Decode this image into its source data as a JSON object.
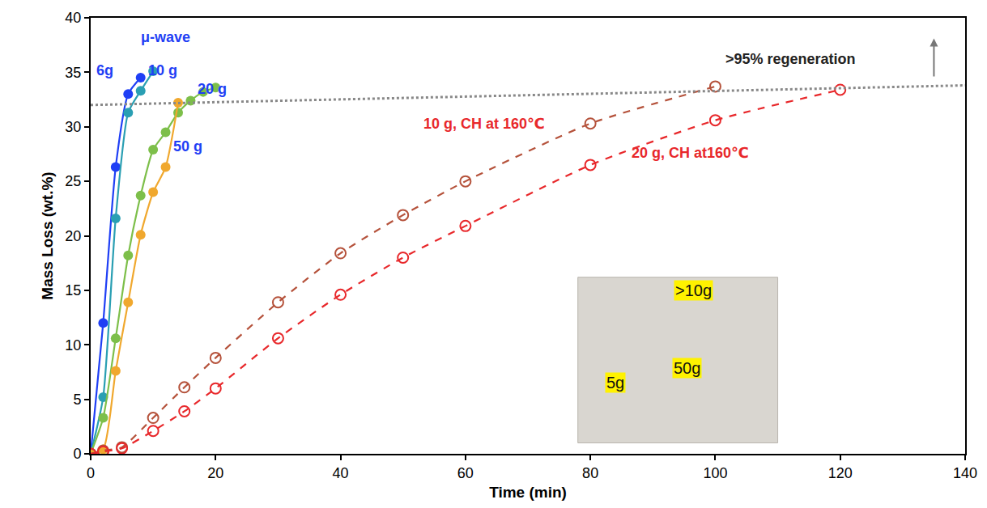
{
  "chart_data": {
    "type": "line",
    "x_label": "Time (min)",
    "y_label": "Mass Loss (wt.%)",
    "xlim": [
      0,
      140
    ],
    "xticks": [
      0,
      20,
      40,
      60,
      80,
      100,
      120,
      140
    ],
    "ylim": [
      0,
      40
    ],
    "yticks": [
      0,
      5,
      10,
      15,
      20,
      25,
      30,
      35,
      40
    ],
    "grid": false,
    "series": [
      {
        "name": "6g",
        "color": "#1f3ff5",
        "marker": "filled",
        "line_style": "solid",
        "x": [
          0,
          2,
          4,
          6,
          8
        ],
        "values": [
          0,
          12,
          26.3,
          33,
          34.5
        ]
      },
      {
        "name": "10 g",
        "color": "#2a9fb3",
        "marker": "filled",
        "line_style": "solid",
        "x": [
          0,
          2,
          4,
          6,
          8,
          10
        ],
        "values": [
          0,
          5.2,
          21.6,
          31.3,
          33.3,
          35.1
        ]
      },
      {
        "name": "20 g",
        "color": "#7dbf4a",
        "marker": "filled",
        "line_style": "solid",
        "x": [
          0,
          2,
          4,
          6,
          8,
          10,
          12,
          14,
          16,
          18,
          20
        ],
        "values": [
          0,
          3.3,
          10.6,
          18.2,
          23.7,
          27.9,
          29.5,
          31.3,
          32.4,
          33.2,
          33.6
        ]
      },
      {
        "name": "50 g",
        "color": "#f0a82e",
        "marker": "filled",
        "line_style": "solid",
        "x": [
          0,
          2,
          4,
          6,
          8,
          10,
          12,
          14
        ],
        "values": [
          0,
          0.4,
          7.6,
          13.9,
          20.1,
          24,
          26.3,
          32.2
        ]
      },
      {
        "name": "10 g, CH at 160℃",
        "color": "#b5523b",
        "marker": "open",
        "line_style": "dash",
        "x": [
          0,
          2,
          5,
          10,
          15,
          20,
          30,
          40,
          50,
          60,
          80,
          100
        ],
        "values": [
          0,
          0.3,
          0.6,
          3.3,
          6.1,
          8.8,
          13.9,
          18.4,
          21.9,
          25.0,
          30.3,
          33.7
        ]
      },
      {
        "name": "20 g, CH at160℃",
        "color": "#e8282b",
        "marker": "open",
        "line_style": "dash",
        "x": [
          0,
          2,
          5,
          10,
          15,
          20,
          30,
          40,
          50,
          60,
          80,
          100,
          120
        ],
        "values": [
          0,
          0.2,
          0.5,
          2.1,
          3.9,
          6,
          10.6,
          14.6,
          18,
          20.9,
          26.5,
          30.6,
          33.4
        ]
      }
    ],
    "reference_line": {
      "x": [
        0,
        140
      ],
      "values": [
        32,
        33.8
      ],
      "color": "#888888",
      "line_style": "dot"
    },
    "annotations": [
      {
        "text": "μ-wave",
        "x": 12,
        "y": 38.2,
        "color": "#1f3ff5"
      },
      {
        "text": "6g",
        "x": 2.3,
        "y": 35.2,
        "color": "#1f3ff5"
      },
      {
        "text": "10 g",
        "x": 11.5,
        "y": 35.2,
        "color": "#1f3ff5"
      },
      {
        "text": "20 g",
        "x": 19.5,
        "y": 33.5,
        "color": "#1f3ff5"
      },
      {
        "text": "50 g",
        "x": 15.5,
        "y": 28.2,
        "color": "#1f3ff5"
      },
      {
        "text": "10 g, CH at 160℃",
        "x": 63,
        "y": 30.3,
        "color": "#e8282b"
      },
      {
        "text": "20 g, CH at160℃",
        "x": 96,
        "y": 27.6,
        "color": "#e8282b"
      },
      {
        "text": ">95% regeneration",
        "x": 112,
        "y": 36.2,
        "color": "#222222"
      }
    ],
    "inset": {
      "x": [
        78,
        110
      ],
      "y": [
        1,
        16.2
      ],
      "labels": [
        {
          "text": "5g",
          "x": 84,
          "y": 6.5
        },
        {
          "text": "50g",
          "x": 95.5,
          "y": 7.9
        },
        {
          "text": ">10g",
          "x": 96.5,
          "y": 15
        }
      ]
    }
  }
}
